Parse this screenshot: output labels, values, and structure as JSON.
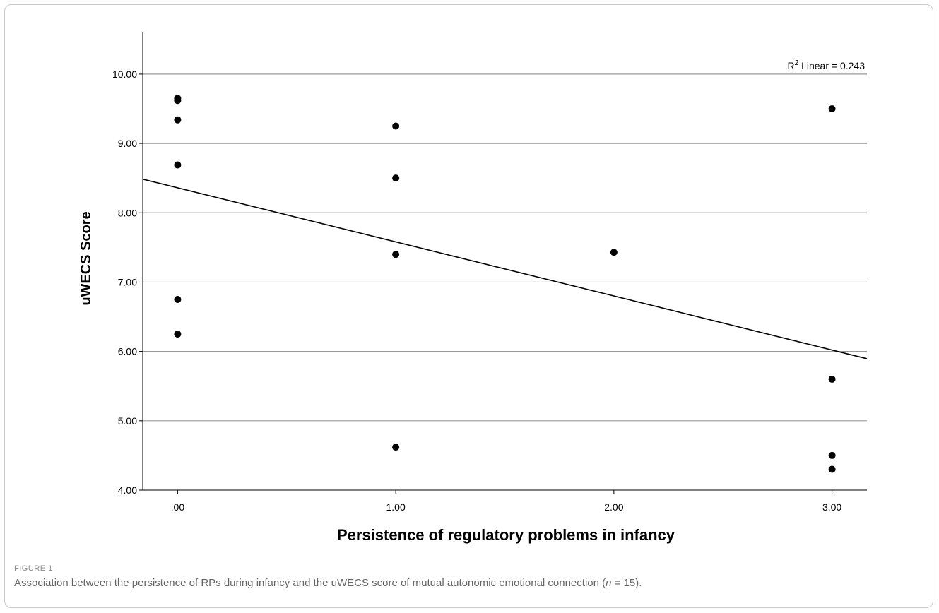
{
  "chart_data": {
    "type": "scatter",
    "title": "",
    "xlabel": "Persistence of regulatory problems in infancy",
    "ylabel": "uWECS Score",
    "xlim": [
      -0.16,
      3.16
    ],
    "ylim": [
      4.0,
      10.6
    ],
    "x_ticks": [
      0,
      1,
      2,
      3
    ],
    "x_tick_labels": [
      ".00",
      "1.00",
      "2.00",
      "3.00"
    ],
    "y_ticks": [
      4,
      5,
      6,
      7,
      8,
      9,
      10
    ],
    "y_tick_labels": [
      "4.00",
      "5.00",
      "6.00",
      "7.00",
      "8.00",
      "9.00",
      "10.00"
    ],
    "grid": "horizontal",
    "points": [
      {
        "x": 0,
        "y": 9.65
      },
      {
        "x": 0,
        "y": 9.62
      },
      {
        "x": 0,
        "y": 9.34
      },
      {
        "x": 0,
        "y": 8.69
      },
      {
        "x": 0,
        "y": 6.75
      },
      {
        "x": 0,
        "y": 6.25
      },
      {
        "x": 1,
        "y": 9.25
      },
      {
        "x": 1,
        "y": 8.5
      },
      {
        "x": 1,
        "y": 7.4
      },
      {
        "x": 1,
        "y": 4.62
      },
      {
        "x": 2,
        "y": 7.43
      },
      {
        "x": 3,
        "y": 9.5
      },
      {
        "x": 3,
        "y": 5.6
      },
      {
        "x": 3,
        "y": 4.5
      },
      {
        "x": 3,
        "y": 4.3
      }
    ],
    "fit_line": {
      "intercept": 8.36,
      "slope": -0.78
    },
    "annotation": {
      "prefix": "R",
      "superscript": "2",
      "text": " Linear = 0.243"
    }
  },
  "caption": {
    "label": "FIGURE 1",
    "text_before": "Association between the persistence of RPs during infancy and the uWECS score of mutual autonomic emotional connection (",
    "italic": "n",
    "text_after": " = 15)."
  }
}
